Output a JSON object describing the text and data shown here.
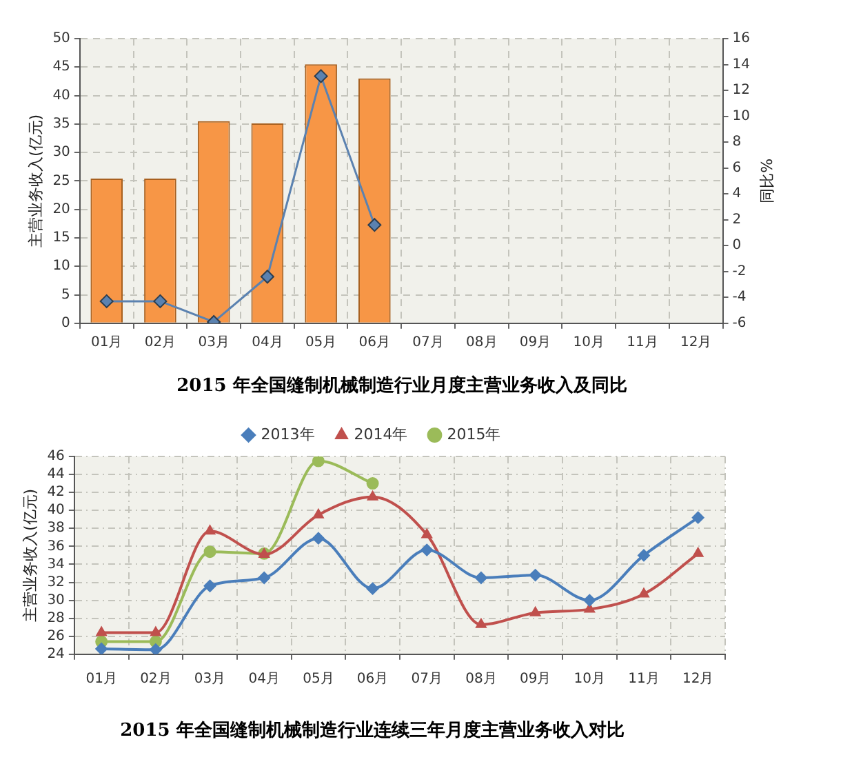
{
  "chart_data": [
    {
      "type": "bar",
      "title": "2015 年全国缝制机械制造行业月度主营业务收入及同比",
      "ylabel": "主营业务收入(亿元)",
      "y2label": "同比%",
      "categories": [
        "01月",
        "02月",
        "03月",
        "04月",
        "05月",
        "06月",
        "07月",
        "08月",
        "09月",
        "10月",
        "11月",
        "12月"
      ],
      "series": [
        {
          "type": "bar",
          "color": "#f79646",
          "values": [
            25.4,
            25.4,
            35.5,
            35.1,
            45.5,
            43.0,
            null,
            null,
            null,
            null,
            null,
            null
          ]
        },
        {
          "type": "line",
          "axis": "y2",
          "color": "#5b82b0",
          "marker": "diamond",
          "values": [
            -4.3,
            -4.3,
            -5.9,
            -2.4,
            13.1,
            1.6,
            null,
            null,
            null,
            null,
            null,
            null
          ]
        }
      ],
      "ylim": [
        0,
        50
      ],
      "yticks": [
        0,
        5,
        10,
        15,
        20,
        25,
        30,
        35,
        40,
        45,
        50
      ],
      "y2lim": [
        -6,
        16
      ],
      "y2ticks": [
        -6,
        -4,
        -2,
        0,
        2,
        4,
        6,
        8,
        10,
        12,
        14,
        16
      ],
      "grid": true
    },
    {
      "type": "line",
      "title": "2015 年全国缝制机械制造行业连续三年月度主营业务收入对比",
      "ylabel": "主营业务收入(亿元)",
      "categories": [
        "01月",
        "02月",
        "03月",
        "04月",
        "05月",
        "06月",
        "07月",
        "08月",
        "09月",
        "10月",
        "11月",
        "12月"
      ],
      "series": [
        {
          "name": "2013年",
          "color": "#4a7ebb",
          "marker": "diamond",
          "values": [
            24.6,
            24.5,
            31.6,
            32.5,
            36.9,
            31.3,
            35.6,
            32.5,
            32.8,
            30.0,
            35.0,
            39.2
          ]
        },
        {
          "name": "2014年",
          "color": "#c0504d",
          "marker": "triangle",
          "values": [
            26.4,
            26.4,
            37.7,
            35.1,
            39.5,
            41.5,
            37.3,
            27.3,
            28.6,
            29.0,
            30.7,
            35.2
          ]
        },
        {
          "name": "2015年",
          "color": "#9bbb59",
          "marker": "circle",
          "values": [
            25.4,
            25.4,
            35.4,
            35.2,
            45.5,
            43.0,
            null,
            null,
            null,
            null,
            null,
            null
          ]
        }
      ],
      "ylim": [
        24,
        46
      ],
      "yticks": [
        24,
        26,
        28,
        30,
        32,
        34,
        36,
        38,
        40,
        42,
        44,
        46
      ],
      "grid": true,
      "legend": "top"
    }
  ]
}
